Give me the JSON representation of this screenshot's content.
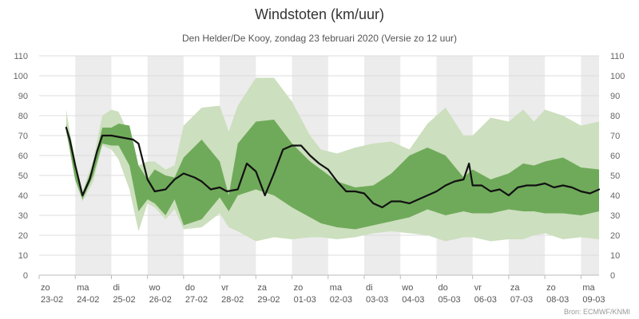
{
  "chart_data": {
    "type": "area",
    "title": "Windstoten (km/uur)",
    "subtitle": "Den Helder/De Kooy, zondag 23 februari 2020 (Versie zo 12 uur)",
    "credit": "Bron: ECMWF/KNMI",
    "ylim": [
      0,
      110
    ],
    "yticks": [
      0,
      10,
      20,
      30,
      40,
      50,
      60,
      70,
      80,
      90,
      100,
      110
    ],
    "xlim": [
      0,
      15.5
    ],
    "days": [
      {
        "day": "zo",
        "date": "23-02"
      },
      {
        "day": "ma",
        "date": "24-02"
      },
      {
        "day": "di",
        "date": "25-02"
      },
      {
        "day": "wo",
        "date": "26-02"
      },
      {
        "day": "do",
        "date": "27-02"
      },
      {
        "day": "vr",
        "date": "28-02"
      },
      {
        "day": "za",
        "date": "29-02"
      },
      {
        "day": "zo",
        "date": "01-03"
      },
      {
        "day": "ma",
        "date": "02-03"
      },
      {
        "day": "di",
        "date": "03-03"
      },
      {
        "day": "wo",
        "date": "04-03"
      },
      {
        "day": "do",
        "date": "05-03"
      },
      {
        "day": "vr",
        "date": "06-03"
      },
      {
        "day": "za",
        "date": "07-03"
      },
      {
        "day": "zo",
        "date": "08-03"
      },
      {
        "day": "ma",
        "date": "09-03"
      }
    ],
    "shaded_days": [
      1,
      3,
      5,
      7,
      9,
      11,
      13,
      15
    ],
    "colors": {
      "outer_band": "#ccdfbe",
      "inner_band": "#6faa5a",
      "median_line": "#111111",
      "shaded_day": "#ececec",
      "grid": "#dddddd"
    },
    "series": [
      {
        "band": "outer",
        "x": [
          0.75,
          0.85,
          1.0,
          1.2,
          1.5,
          1.75,
          2.0,
          2.2,
          2.5,
          2.75,
          3.0,
          3.2,
          3.5,
          3.75,
          4.0,
          4.5,
          5.0,
          5.25,
          5.5,
          6.0,
          6.5,
          7.0,
          7.5,
          7.8,
          8.25,
          8.75,
          9.25,
          9.75,
          10.25,
          10.75,
          11.25,
          11.75,
          12.0,
          12.5,
          13.0,
          13.4,
          13.7,
          14.0,
          14.5,
          15.0,
          15.5
        ],
        "upper": [
          83,
          72,
          58,
          42,
          58,
          80,
          83,
          82,
          70,
          55,
          57,
          57,
          53,
          55,
          75,
          84,
          85,
          72,
          85,
          99,
          99,
          87,
          70,
          63,
          61,
          64,
          66,
          67,
          63,
          76,
          84,
          70,
          70,
          79,
          77,
          83,
          77,
          83,
          80,
          75,
          77
        ],
        "lower": [
          73,
          62,
          47,
          37,
          47,
          65,
          63,
          58,
          43,
          22,
          36,
          34,
          28,
          33,
          23,
          24,
          31,
          24,
          22,
          17,
          19,
          18,
          19,
          19,
          18,
          19,
          21,
          22,
          21,
          20,
          17,
          19,
          19,
          17,
          18,
          18,
          20,
          21,
          18,
          19,
          18
        ]
      },
      {
        "band": "inner",
        "x": [
          0.75,
          0.85,
          1.0,
          1.2,
          1.5,
          1.75,
          2.0,
          2.2,
          2.5,
          2.75,
          3.0,
          3.2,
          3.5,
          3.75,
          4.0,
          4.5,
          5.0,
          5.25,
          5.5,
          6.0,
          6.5,
          7.0,
          7.5,
          7.8,
          8.25,
          8.75,
          9.25,
          9.75,
          10.25,
          10.75,
          11.25,
          11.75,
          12.0,
          12.5,
          13.0,
          13.4,
          13.7,
          14.0,
          14.5,
          15.0,
          15.5
        ],
        "upper": [
          76,
          67,
          53,
          41,
          55,
          74,
          74,
          76,
          75,
          55,
          48,
          53,
          50,
          49,
          59,
          68,
          57,
          40,
          66,
          77,
          78,
          66,
          57,
          53,
          47,
          44,
          45,
          51,
          60,
          64,
          60,
          49,
          53,
          48,
          51,
          56,
          55,
          57,
          59,
          54,
          53
        ],
        "lower": [
          72,
          63,
          48,
          38,
          50,
          66,
          65,
          65,
          55,
          32,
          38,
          36,
          30,
          38,
          25,
          28,
          39,
          32,
          40,
          43,
          40,
          34,
          29,
          26,
          24,
          23,
          25,
          27,
          29,
          33,
          30,
          32,
          31,
          31,
          33,
          32,
          32,
          31,
          31,
          30,
          32
        ]
      },
      {
        "name": "",
        "band": "median",
        "x": [
          0.75,
          0.85,
          1.0,
          1.2,
          1.4,
          1.6,
          1.75,
          2.0,
          2.3,
          2.6,
          2.75,
          3.0,
          3.2,
          3.5,
          3.75,
          4.0,
          4.3,
          4.5,
          4.75,
          5.0,
          5.2,
          5.5,
          5.75,
          6.0,
          6.25,
          6.5,
          6.75,
          7.0,
          7.25,
          7.5,
          7.75,
          8.0,
          8.25,
          8.5,
          8.75,
          9.0,
          9.25,
          9.5,
          9.75,
          10.0,
          10.25,
          10.5,
          10.75,
          11.0,
          11.25,
          11.5,
          11.75,
          11.9,
          12.0,
          12.25,
          12.5,
          12.75,
          13.0,
          13.25,
          13.5,
          13.75,
          14.0,
          14.25,
          14.5,
          14.75,
          15.0,
          15.25,
          15.5
        ],
        "y": [
          74,
          68,
          55,
          40,
          48,
          62,
          70,
          70,
          69,
          68,
          66,
          48,
          42,
          43,
          48,
          51,
          49,
          47,
          43,
          44,
          42,
          43,
          56,
          52,
          40,
          51,
          63,
          65,
          65,
          60,
          56,
          53,
          47,
          42,
          42,
          41,
          36,
          34,
          37,
          37,
          36,
          38,
          40,
          42,
          45,
          47,
          48,
          56,
          45,
          45,
          42,
          43,
          40,
          44,
          45,
          45,
          46,
          44,
          45,
          44,
          42,
          41,
          43
        ]
      }
    ]
  }
}
